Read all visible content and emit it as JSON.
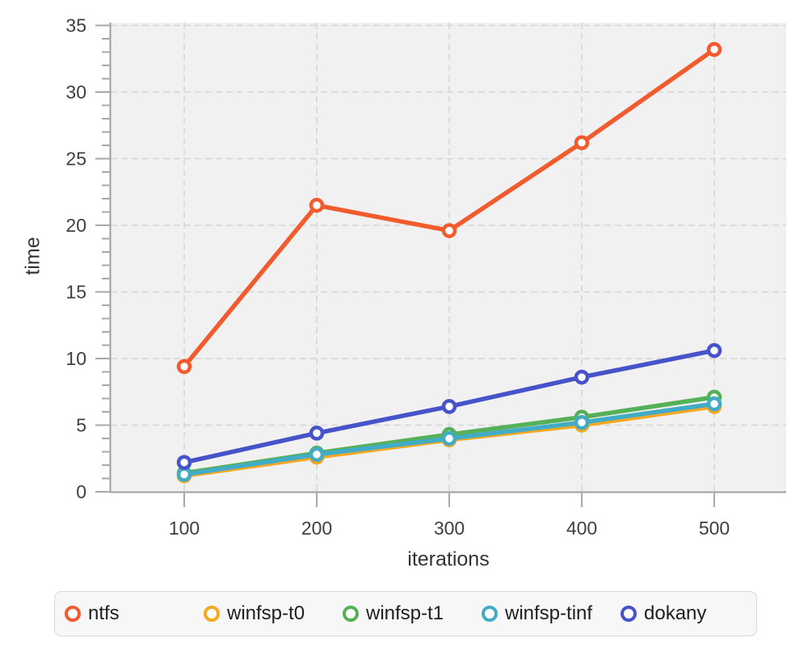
{
  "chart_data": {
    "type": "line",
    "title": "",
    "xlabel": "iterations",
    "ylabel": "time",
    "x": [
      100,
      200,
      300,
      400,
      500
    ],
    "ylim": [
      0,
      35
    ],
    "y_major_step": 5,
    "y_minor_step": 1,
    "grid": "dashed major gridlines on both axes",
    "legend_position": "bottom",
    "marker": "open-circle",
    "series": [
      {
        "name": "ntfs",
        "color": "#f15b2e",
        "values": [
          9.4,
          21.5,
          19.6,
          26.2,
          33.2
        ]
      },
      {
        "name": "winfsp-t0",
        "color": "#f6a821",
        "values": [
          1.2,
          2.6,
          3.9,
          5.0,
          6.4
        ]
      },
      {
        "name": "winfsp-t1",
        "color": "#55b158",
        "values": [
          1.4,
          2.9,
          4.3,
          5.6,
          7.1
        ]
      },
      {
        "name": "winfsp-tinf",
        "color": "#42abc5",
        "values": [
          1.3,
          2.8,
          4.0,
          5.2,
          6.6
        ]
      },
      {
        "name": "dokany",
        "color": "#4753c8",
        "values": [
          2.2,
          4.4,
          6.4,
          8.6,
          10.6
        ]
      }
    ]
  },
  "colors": {
    "plot_bg": "#f1f1f2",
    "grid": "#d5d5d5",
    "axis": "#9e9e9e",
    "tick": "#a8a8a8",
    "tick_text": "#404040",
    "label_text": "#333333",
    "legend_bg": "#f7f7f7",
    "legend_border": "#d9d9d9",
    "legend_text": "#1f1f1f"
  }
}
